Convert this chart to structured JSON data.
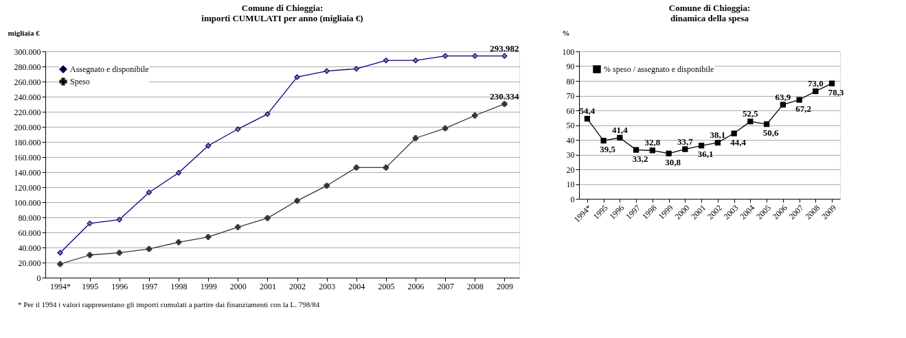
{
  "chart_data": [
    {
      "type": "line",
      "title": "Comune di Chioggia:\nimporti CUMULATI per anno (migliaia €)",
      "ylabel": "migliaia €",
      "categories": [
        "1994*",
        "1995",
        "1996",
        "1997",
        "1998",
        "1999",
        "2000",
        "2001",
        "2002",
        "2003",
        "2004",
        "2005",
        "2006",
        "2007",
        "2008",
        "2009"
      ],
      "series": [
        {
          "name": "Assegnato e disponibile",
          "color": "#000080",
          "marker": "diamond",
          "values": [
            33000,
            72000,
            77000,
            113000,
            139000,
            175000,
            197000,
            217000,
            266000,
            274000,
            277000,
            288000,
            288000,
            294000,
            294000,
            293982
          ],
          "value_labels": [
            null,
            null,
            null,
            null,
            null,
            null,
            null,
            null,
            null,
            null,
            null,
            null,
            null,
            null,
            null,
            "293.982"
          ]
        },
        {
          "name": "Speso",
          "color": "#333333",
          "marker": "cross",
          "values": [
            18000,
            30000,
            33000,
            38000,
            47000,
            54000,
            67000,
            79000,
            102000,
            122000,
            146000,
            146000,
            185000,
            198000,
            215000,
            230334
          ],
          "value_labels": [
            null,
            null,
            null,
            null,
            null,
            null,
            null,
            null,
            null,
            null,
            null,
            null,
            null,
            null,
            null,
            "230.334"
          ]
        }
      ],
      "ylim": [
        0,
        300000
      ],
      "yticks": [
        0,
        {
          "value": 20000,
          "label": "20.000"
        },
        {
          "value": 40000,
          "label": "40.000"
        },
        {
          "value": 60000,
          "label": "60.000"
        },
        {
          "value": 80000,
          "label": "80.000"
        },
        {
          "value": 100000,
          "label": "100.000"
        },
        {
          "value": 120000,
          "label": "120.000"
        },
        {
          "value": 140000,
          "label": "140.000"
        },
        {
          "value": 160000,
          "label": "160.000"
        },
        {
          "value": 180000,
          "label": "180.000"
        },
        {
          "value": 200000,
          "label": "200.000"
        },
        {
          "value": 220000,
          "label": "220.000"
        },
        {
          "value": 240000,
          "label": "240.000"
        },
        {
          "value": 260000,
          "label": "260.000"
        },
        {
          "value": 280000,
          "label": "280.000"
        },
        {
          "value": 300000,
          "label": "300.000"
        }
      ],
      "grid": "y",
      "legend": "top left",
      "line_style": "solid",
      "annotations": [
        "* Per il 1994 i valori rappresentano gli importi cumulati a partire dai finanziamenti con la L. 798/84"
      ]
    },
    {
      "type": "line",
      "title": "Comune di Chioggia:\ndinamica della spesa",
      "ylabel": "%",
      "categories": [
        "1994*",
        "1995",
        "1996",
        "1997",
        "1998",
        "1999",
        "2000",
        "2001",
        "2002",
        "2003",
        "2004",
        "2005",
        "2006",
        "2007",
        "2008",
        "2009"
      ],
      "series": [
        {
          "name": "% speso / assegnato e disponibile",
          "color": "#000000",
          "marker": "square",
          "values": [
            54.4,
            39.5,
            41.4,
            33.2,
            32.8,
            30.8,
            33.7,
            36.1,
            38.1,
            44.4,
            52.5,
            50.6,
            63.9,
            67.2,
            73.0,
            78.3
          ],
          "value_labels": [
            "54,4",
            "39,5",
            "41,4",
            "33,2",
            "32,8",
            "30,8",
            "33,7",
            "36,1",
            "38,1",
            "44,4",
            "52,5",
            "50,6",
            "63,9",
            "67,2",
            "73,0",
            "78,3"
          ]
        }
      ],
      "ylim": [
        0,
        100
      ],
      "yticks": [
        0,
        10,
        20,
        30,
        40,
        50,
        60,
        70,
        80,
        90,
        100
      ],
      "grid": "y",
      "legend": "top left",
      "line_style": "solid"
    }
  ]
}
